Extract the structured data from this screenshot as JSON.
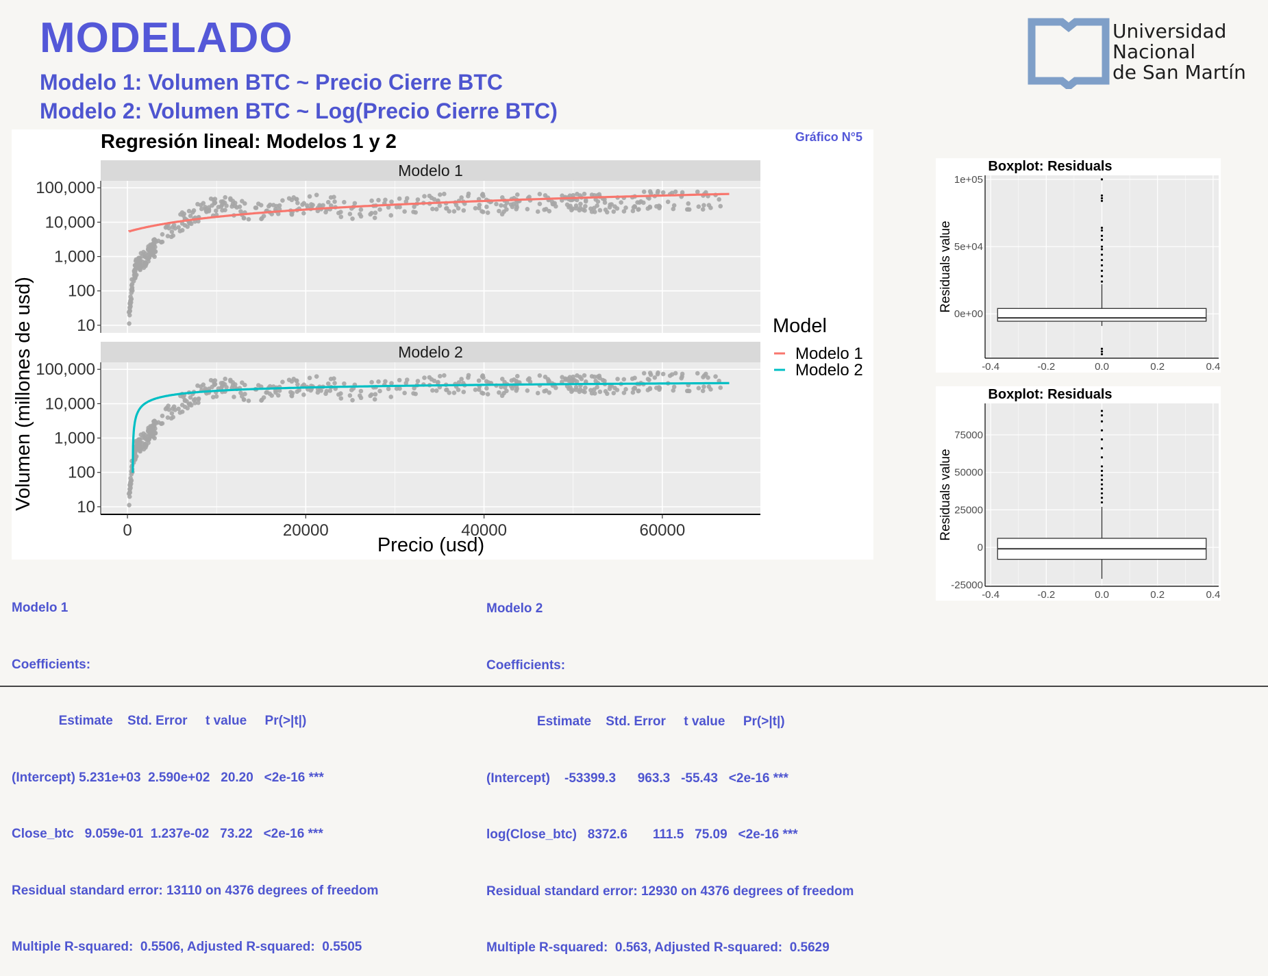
{
  "header": {
    "title": "MODELADO",
    "subtitle1": "Modelo 1: Volumen BTC ~ Precio Cierre BTC",
    "subtitle2": "Modelo 2: Volumen BTC ~ Log(Precio Cierre BTC)",
    "figure_label": "Gráfico N°5"
  },
  "logo": {
    "line1": "Universidad",
    "line2": "Nacional",
    "line3": "de San Martín",
    "color": "#7f9fc8"
  },
  "colors": {
    "accent": "#4e55d0",
    "modelo1": "#f8766d",
    "modelo2": "#00bfc4",
    "points": "#a6a6a6",
    "panel": "#ebebeb",
    "strip": "#d9d9d9"
  },
  "chart_data": [
    {
      "type": "scatter",
      "title": "Regresión lineal: Modelos 1 y 2",
      "xlabel": "Precio (usd)",
      "ylabel": "Volumen (millones de usd)",
      "y_scale": "log",
      "x_ticks": [
        "0",
        "20000",
        "40000",
        "60000"
      ],
      "x_tick_values": [
        0,
        20000,
        40000,
        60000
      ],
      "y_ticks": [
        "10",
        "100",
        "1,000",
        "10,000",
        "100,000"
      ],
      "y_tick_values": [
        10,
        100,
        1000,
        10000,
        100000
      ],
      "xlim": [
        -3000,
        71000
      ],
      "ylim": [
        6,
        160000
      ],
      "legend_title": "Model",
      "legend_position": "right",
      "legend": [
        "Modelo 1",
        "Modelo 2"
      ],
      "facets": [
        {
          "label": "Modelo 1",
          "fit": {
            "type": "linear",
            "intercept": 5231,
            "slope": 0.9059,
            "x_range": [
              200,
              67500
            ]
          }
        },
        {
          "label": "Modelo 2",
          "fit": {
            "type": "log",
            "intercept": -53399.3,
            "slope": 8372.6,
            "x_range": [
              200,
              67500
            ]
          }
        }
      ],
      "points_cloud": [
        [
          150,
          12
        ],
        [
          250,
          30
        ],
        [
          400,
          80
        ],
        [
          600,
          200
        ],
        [
          800,
          350
        ],
        [
          1000,
          500
        ],
        [
          1500,
          700
        ],
        [
          2500,
          1200
        ],
        [
          4000,
          4000
        ],
        [
          5500,
          8000
        ],
        [
          7000,
          15000
        ],
        [
          9000,
          25000
        ],
        [
          11000,
          30000
        ],
        [
          14000,
          18000
        ],
        [
          18000,
          30000
        ],
        [
          22000,
          35000
        ],
        [
          26000,
          20000
        ],
        [
          30000,
          30000
        ],
        [
          34000,
          35000
        ],
        [
          38000,
          40000
        ],
        [
          42000,
          32000
        ],
        [
          46000,
          38000
        ],
        [
          50000,
          40000
        ],
        [
          54000,
          36000
        ],
        [
          58000,
          42000
        ],
        [
          62000,
          44000
        ],
        [
          66000,
          40000
        ]
      ]
    },
    {
      "type": "boxplot",
      "title": "Boxplot: Residuals",
      "ylabel": "Residuals value",
      "y_ticks": [
        "0e+00",
        "5e+04",
        "1e+05"
      ],
      "y_tick_values": [
        0,
        50000,
        100000
      ],
      "ylim": [
        -33000,
        103000
      ],
      "x_ticks": [
        "-0.4",
        "-0.2",
        "0.0",
        "0.2",
        "0.4"
      ],
      "x_tick_values": [
        -0.4,
        -0.2,
        0.0,
        0.2,
        0.4
      ],
      "xlim": [
        -0.42,
        0.42
      ],
      "box": {
        "q1": -5500,
        "median": -3000,
        "q3": 4000,
        "lower_whisker": -9000,
        "upper_whisker": 22000
      },
      "outliers": [
        -26000,
        -28000,
        -30000,
        24000,
        28000,
        32000,
        36000,
        40000,
        44000,
        48000,
        50000,
        55000,
        58000,
        62000,
        64000,
        84000,
        86000,
        88000,
        100000
      ]
    },
    {
      "type": "boxplot",
      "title": "Boxplot: Residuals",
      "ylabel": "Residuals value",
      "y_ticks": [
        "-25000",
        "0",
        "25000",
        "50000",
        "75000"
      ],
      "y_tick_values": [
        -25000,
        0,
        25000,
        50000,
        75000
      ],
      "ylim": [
        -26000,
        96000
      ],
      "x_ticks": [
        "-0.4",
        "-0.2",
        "0.0",
        "0.2",
        "0.4"
      ],
      "x_tick_values": [
        -0.4,
        -0.2,
        0.0,
        0.2,
        0.4
      ],
      "xlim": [
        -0.42,
        0.42
      ],
      "box": {
        "q1": -8000,
        "median": -1000,
        "q3": 6000,
        "lower_whisker": -21000,
        "upper_whisker": 27000
      },
      "outliers": [
        30000,
        33000,
        36000,
        39000,
        42000,
        45000,
        48000,
        51000,
        54000,
        60000,
        66000,
        72000,
        78000,
        84000,
        88000,
        91000
      ]
    }
  ],
  "stats": {
    "m1": {
      "title": "Modelo 1",
      "coef": "Coefficients:",
      "header": "             Estimate    Std. Error     t value     Pr(>|t|)",
      "row1": "(Intercept) 5.231e+03  2.590e+02   20.20   <2e-16 ***",
      "row2": "Close_btc   9.059e-01  1.237e-02   73.22   <2e-16 ***",
      "rse": "Residual standard error: 13110 on 4376 degrees of freedom",
      "r2": "Multiple R-squared:  0.5506, Adjusted R-squared:  0.5505"
    },
    "m2": {
      "title": "Modelo 2",
      "coef": "Coefficients:",
      "header": "              Estimate    Std. Error     t value     Pr(>|t|)",
      "row1": "(Intercept)    -53399.3      963.3   -55.43   <2e-16 ***",
      "row2": "log(Close_btc)   8372.6       111.5   75.09   <2e-16 ***",
      "rse": "Residual standard error: 12930 on 4376 degrees of freedom",
      "r2": "Multiple R-squared:  0.563, Adjusted R-squared:  0.5629"
    }
  }
}
